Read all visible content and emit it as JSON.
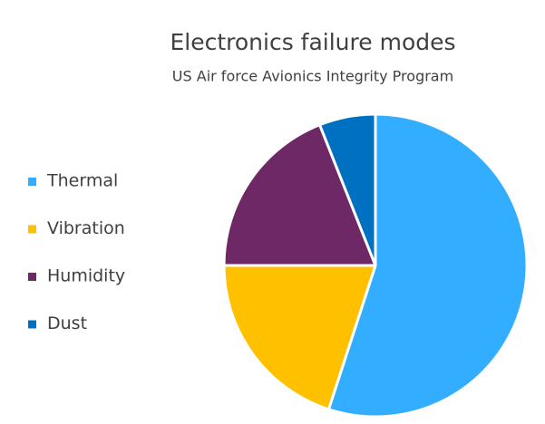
{
  "chart_data": {
    "type": "pie",
    "title": "Electronics failure modes",
    "subtitle": "US Air force Avionics Integrity Program",
    "legend": "left",
    "series": [
      {
        "name": "Thermal",
        "color": "#33adff",
        "values": [
          55
        ]
      },
      {
        "name": "Vibration",
        "color": "#ffc000",
        "values": [
          20
        ]
      },
      {
        "name": "Humidity",
        "color": "#6e2866",
        "values": [
          19
        ]
      },
      {
        "name": "Dust",
        "color": "#0070c0",
        "values": [
          6
        ]
      }
    ]
  }
}
